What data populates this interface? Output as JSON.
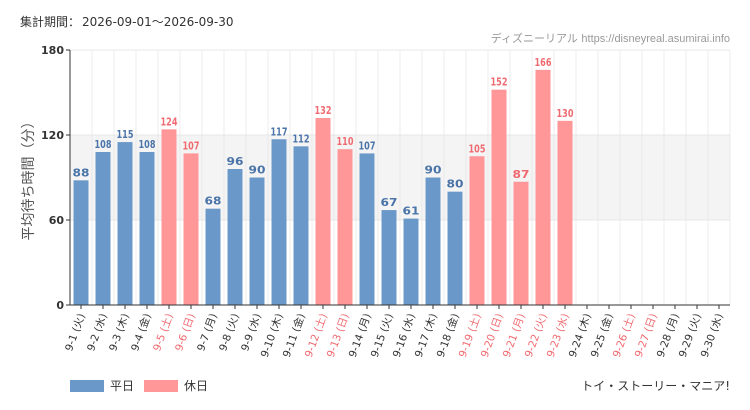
{
  "header": {
    "period_label": "集計期間",
    "period_value": "2026-09-01〜2026-09-30",
    "source_name": "ディズニーリアル",
    "source_url": "https://disneyreal.asumirai.info"
  },
  "footer": {
    "attraction": "トイ・ストーリー・マニア!"
  },
  "legend": {
    "weekday": "平日",
    "holiday": "休日"
  },
  "colors": {
    "weekday": "#6a98c8",
    "holiday": "#ff9697",
    "weekday_label": "#4a74a8",
    "holiday_label": "#ef6a70",
    "band": "#f4f4f4",
    "grid": "#e2e2e2",
    "axis": "#333333"
  },
  "chart_data": {
    "type": "bar",
    "title": "",
    "xlabel": "",
    "ylabel": "平均待ち時間（分）",
    "ylim": [
      0,
      180
    ],
    "yticks": [
      0,
      60,
      120,
      180
    ],
    "highlight_band": [
      60,
      120
    ],
    "categories": [
      "9-1 (火)",
      "9-2 (水)",
      "9-3 (木)",
      "9-4 (金)",
      "9-5 (土)",
      "9-6 (日)",
      "9-7 (月)",
      "9-8 (火)",
      "9-9 (水)",
      "9-10 (木)",
      "9-11 (金)",
      "9-12 (土)",
      "9-13 (日)",
      "9-14 (月)",
      "9-15 (火)",
      "9-16 (水)",
      "9-17 (木)",
      "9-18 (金)",
      "9-19 (土)",
      "9-20 (日)",
      "9-21 (月)",
      "9-22 (火)",
      "9-23 (水)",
      "9-24 (木)",
      "9-25 (金)",
      "9-26 (土)",
      "9-27 (日)",
      "9-28 (月)",
      "9-29 (火)",
      "9-30 (水)"
    ],
    "values": [
      88,
      108,
      115,
      108,
      124,
      107,
      68,
      96,
      90,
      117,
      112,
      132,
      110,
      107,
      67,
      61,
      90,
      80,
      105,
      152,
      87,
      166,
      130,
      null,
      null,
      null,
      null,
      null,
      null,
      null
    ],
    "day_type": [
      "weekday",
      "weekday",
      "weekday",
      "weekday",
      "holiday",
      "holiday",
      "weekday",
      "weekday",
      "weekday",
      "weekday",
      "weekday",
      "holiday",
      "holiday",
      "weekday",
      "weekday",
      "weekday",
      "weekday",
      "weekday",
      "holiday",
      "holiday",
      "holiday",
      "holiday",
      "holiday",
      "weekday",
      "weekday",
      "holiday",
      "holiday",
      "weekday",
      "weekday",
      "weekday"
    ],
    "series": [
      {
        "name": "平日",
        "key": "weekday"
      },
      {
        "name": "休日",
        "key": "holiday"
      }
    ],
    "grid": true,
    "legend_position": "bottom-left"
  }
}
